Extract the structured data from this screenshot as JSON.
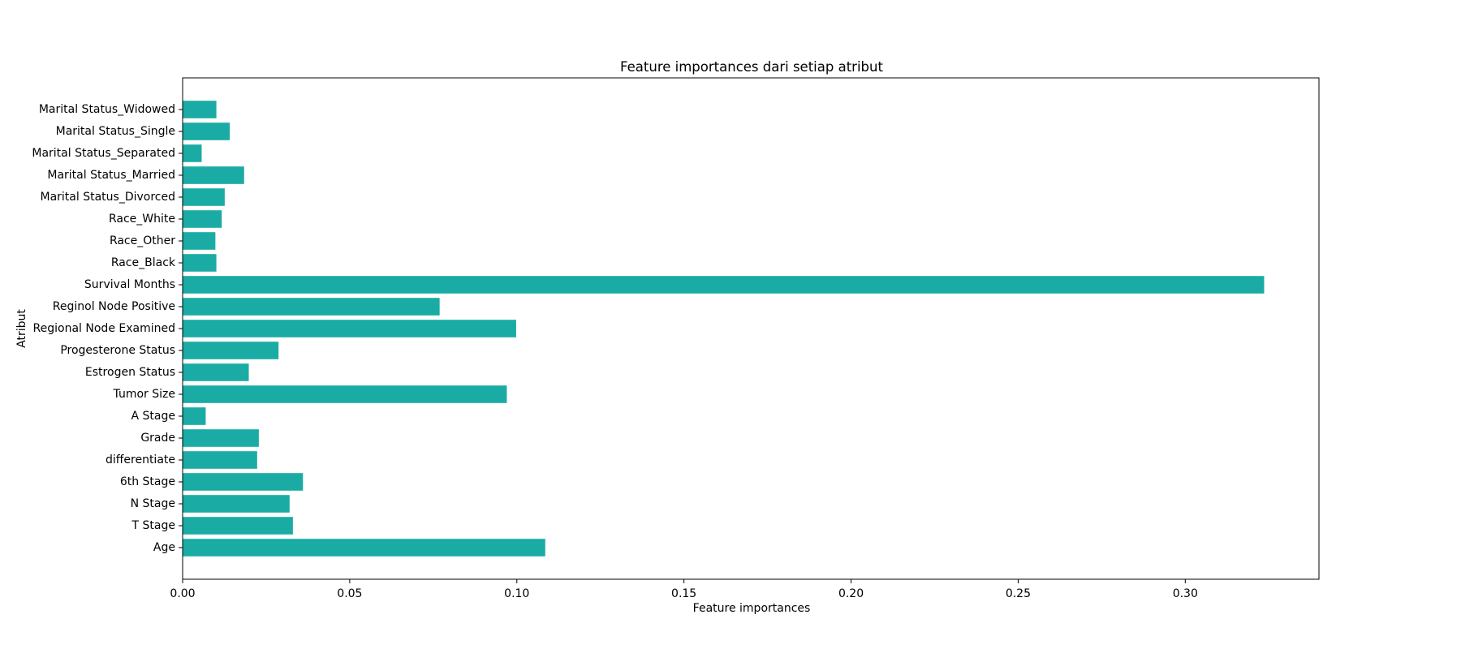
{
  "chart_data": {
    "type": "bar",
    "orientation": "horizontal",
    "title": "Feature importances dari setiap atribut",
    "xlabel": "Feature importances",
    "ylabel": "Atribut",
    "bar_color": "#1aaca4",
    "xlim": [
      0,
      0.34
    ],
    "xticks": [
      "0.00",
      "0.05",
      "0.10",
      "0.15",
      "0.20",
      "0.25",
      "0.30"
    ],
    "grid": false,
    "categories": [
      "Age",
      "T Stage",
      "N Stage",
      "6th Stage",
      "differentiate",
      "Grade",
      "A Stage",
      "Tumor Size",
      "Estrogen Status",
      "Progesterone Status",
      "Regional Node Examined",
      "Reginol Node Positive",
      "Survival Months",
      "Race_Black",
      "Race_Other",
      "Race_White",
      "Marital Status_Divorced",
      "Marital Status_Married",
      "Marital Status_Separated",
      "Marital Status_Single ",
      "Marital Status_Widowed"
    ],
    "values": [
      0.1085,
      0.033,
      0.032,
      0.036,
      0.0223,
      0.0228,
      0.0069,
      0.097,
      0.0198,
      0.0287,
      0.0998,
      0.0769,
      0.3236,
      0.0101,
      0.0098,
      0.0117,
      0.0126,
      0.0184,
      0.0057,
      0.0141,
      0.0101
    ]
  }
}
